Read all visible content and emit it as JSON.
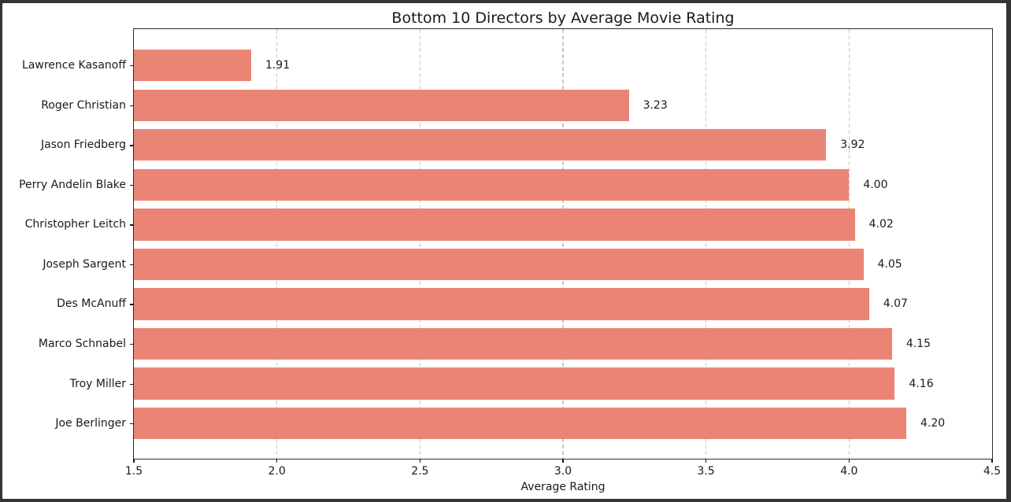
{
  "window": {
    "frame_color": "#353535",
    "background_color": "#ffffff"
  },
  "chart_data": {
    "type": "bar",
    "orientation": "horizontal",
    "title": "Bottom 10 Directors by Average Movie Rating",
    "xlabel": "Average Rating",
    "ylabel": "",
    "categories": [
      "Lawrence Kasanoff",
      "Roger Christian",
      "Jason Friedberg",
      "Perry Andelin Blake",
      "Christopher Leitch",
      "Joseph Sargent",
      "Des McAnuff",
      "Marco Schnabel",
      "Troy Miller",
      "Joe Berlinger"
    ],
    "values": [
      1.91,
      3.23,
      3.92,
      4.0,
      4.02,
      4.05,
      4.07,
      4.15,
      4.16,
      4.2
    ],
    "value_labels": [
      "1.91",
      "3.23",
      "3.92",
      "4.00",
      "4.02",
      "4.05",
      "4.07",
      "4.15",
      "4.16",
      "4.20"
    ],
    "xlim": [
      1.5,
      4.5
    ],
    "xticks": [
      1.5,
      2.0,
      2.5,
      3.0,
      3.5,
      4.0,
      4.5
    ],
    "xtick_labels": [
      "1.5",
      "2.0",
      "2.5",
      "3.0",
      "3.5",
      "4.0",
      "4.5"
    ],
    "bar_color": "#ea8576",
    "grid": "vertical dashed, behind bars",
    "grid_color": "#c9c9c9",
    "spine_color": "#2b2b2b",
    "text_color": "#1a1a1a",
    "legend": "none"
  }
}
